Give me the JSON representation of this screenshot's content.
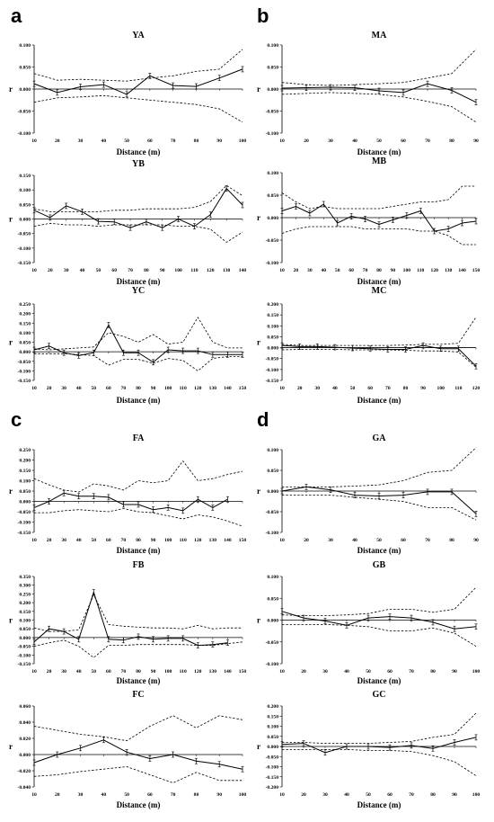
{
  "panel_letters": [
    "a",
    "b",
    "c",
    "d"
  ],
  "chart_data": [
    {
      "type": "line",
      "title": "YA",
      "xlabel": "Distance (m)",
      "ylabel": "r",
      "x": [
        10,
        20,
        30,
        40,
        50,
        60,
        70,
        80,
        90,
        100
      ],
      "yticks": [
        "0.100",
        "0.050",
        "0.000",
        "-0.050",
        "-0.100"
      ],
      "ylim": [
        -0.1,
        0.1
      ],
      "xlim": [
        10,
        100
      ],
      "r": [
        0.012,
        -0.008,
        0.005,
        0.01,
        -0.012,
        0.03,
        0.008,
        0.006,
        0.025,
        0.045
      ],
      "upper": [
        0.035,
        0.02,
        0.022,
        0.02,
        0.018,
        0.025,
        0.03,
        0.04,
        0.045,
        0.09
      ],
      "lower": [
        -0.03,
        -0.02,
        -0.018,
        -0.015,
        -0.02,
        -0.025,
        -0.03,
        -0.035,
        -0.045,
        -0.075
      ]
    },
    {
      "type": "line",
      "title": "MA",
      "xlabel": "Distance (m)",
      "ylabel": "r",
      "x": [
        10,
        20,
        30,
        40,
        50,
        60,
        70,
        80,
        90
      ],
      "yticks": [
        "0.100",
        "0.050",
        "0.000",
        "-0.050",
        "-0.100"
      ],
      "ylim": [
        -0.1,
        0.1
      ],
      "xlim": [
        10,
        90
      ],
      "r": [
        0.002,
        0.003,
        0.004,
        0.003,
        -0.004,
        -0.008,
        0.012,
        -0.003,
        -0.03
      ],
      "upper": [
        0.015,
        0.01,
        0.008,
        0.01,
        0.012,
        0.015,
        0.025,
        0.035,
        0.09
      ],
      "lower": [
        -0.012,
        -0.01,
        -0.008,
        -0.01,
        -0.012,
        -0.018,
        -0.028,
        -0.04,
        -0.075
      ]
    },
    {
      "type": "line",
      "title": "YB",
      "xlabel": "Distance (m)",
      "ylabel": "r",
      "x": [
        10,
        20,
        30,
        40,
        50,
        60,
        70,
        80,
        90,
        100,
        110,
        120,
        130,
        140
      ],
      "yticks": [
        "0.150",
        "0.100",
        "0.050",
        "0.000",
        "-0.050",
        "-0.100",
        "-0.150"
      ],
      "ylim": [
        -0.15,
        0.15
      ],
      "xlim": [
        10,
        140
      ],
      "r": [
        0.03,
        0.005,
        0.045,
        0.025,
        -0.008,
        -0.01,
        -0.03,
        -0.01,
        -0.03,
        0.0,
        -0.025,
        0.015,
        0.105,
        0.048
      ],
      "upper": [
        0.035,
        0.025,
        0.025,
        0.025,
        0.025,
        0.03,
        0.03,
        0.035,
        0.035,
        0.035,
        0.04,
        0.06,
        0.115,
        0.08
      ],
      "lower": [
        -0.025,
        -0.015,
        -0.02,
        -0.02,
        -0.025,
        -0.02,
        -0.02,
        -0.02,
        -0.02,
        -0.025,
        -0.025,
        -0.035,
        -0.08,
        -0.045
      ]
    },
    {
      "type": "line",
      "title": "MB",
      "xlabel": "Distance (m)",
      "ylabel": "r",
      "x": [
        10,
        20,
        30,
        40,
        50,
        60,
        70,
        80,
        90,
        100,
        110,
        120,
        130,
        140,
        150
      ],
      "yticks": [
        "0.100",
        "0.050",
        "0.000",
        "-0.050",
        "-0.100"
      ],
      "ylim": [
        -0.1,
        0.1
      ],
      "xlim": [
        10,
        150
      ],
      "r": [
        0.015,
        0.025,
        0.01,
        0.03,
        -0.012,
        0.003,
        -0.003,
        -0.015,
        -0.005,
        0.005,
        0.015,
        -0.03,
        -0.025,
        -0.012,
        -0.008
      ],
      "upper": [
        0.055,
        0.035,
        0.02,
        0.025,
        0.02,
        0.02,
        0.02,
        0.02,
        0.025,
        0.03,
        0.035,
        0.035,
        0.04,
        0.07,
        0.07
      ],
      "lower": [
        -0.035,
        -0.025,
        -0.02,
        -0.02,
        -0.02,
        -0.02,
        -0.025,
        -0.025,
        -0.025,
        -0.025,
        -0.03,
        -0.03,
        -0.04,
        -0.06,
        -0.06
      ]
    },
    {
      "type": "line",
      "title": "YC",
      "xlabel": "Distance (m)",
      "ylabel": "r",
      "x": [
        10,
        20,
        30,
        40,
        50,
        60,
        70,
        80,
        90,
        100,
        110,
        120,
        130,
        140,
        150
      ],
      "yticks": [
        "0.250",
        "0.200",
        "0.150",
        "0.100",
        "0.050",
        "0.000",
        "-0.050",
        "-0.100",
        "-0.150"
      ],
      "ylim": [
        -0.15,
        0.25
      ],
      "xlim": [
        10,
        150
      ],
      "r": [
        0.01,
        0.03,
        -0.005,
        -0.02,
        -0.005,
        0.14,
        -0.005,
        -0.005,
        -0.055,
        0.01,
        0.005,
        0.005,
        -0.015,
        -0.015,
        -0.015
      ],
      "upper": [
        0.015,
        0.01,
        0.015,
        0.02,
        0.025,
        0.1,
        0.08,
        0.05,
        0.09,
        0.04,
        0.05,
        0.18,
        0.05,
        0.02,
        0.02
      ],
      "lower": [
        -0.01,
        -0.01,
        -0.01,
        -0.015,
        -0.02,
        -0.07,
        -0.04,
        -0.04,
        -0.06,
        -0.035,
        -0.045,
        -0.1,
        -0.035,
        -0.025,
        -0.025
      ]
    },
    {
      "type": "line",
      "title": "MC",
      "xlabel": "Distance (m)",
      "ylabel": "r",
      "x": [
        10,
        20,
        30,
        40,
        50,
        60,
        70,
        80,
        90,
        100,
        110,
        120
      ],
      "yticks": [
        "0.200",
        "0.150",
        "0.100",
        "0.050",
        "0.000",
        "-0.050",
        "-0.100",
        "-0.150"
      ],
      "ylim": [
        -0.15,
        0.2
      ],
      "xlim": [
        10,
        120
      ],
      "r": [
        0.01,
        0.005,
        0.005,
        0.002,
        -0.002,
        -0.005,
        -0.008,
        -0.008,
        0.01,
        -0.005,
        -0.005,
        -0.085
      ],
      "upper": [
        0.015,
        0.01,
        0.01,
        0.01,
        0.01,
        0.01,
        0.01,
        0.012,
        0.015,
        0.015,
        0.02,
        0.14
      ],
      "lower": [
        -0.01,
        -0.008,
        -0.008,
        -0.008,
        -0.01,
        -0.01,
        -0.01,
        -0.012,
        -0.015,
        -0.015,
        -0.02,
        -0.09
      ]
    },
    {
      "type": "line",
      "title": "FA",
      "xlabel": "Distance (m)",
      "ylabel": "r",
      "x": [
        10,
        20,
        30,
        40,
        50,
        60,
        70,
        80,
        90,
        100,
        110,
        120,
        130,
        140,
        150
      ],
      "yticks": [
        "0.250",
        "0.200",
        "0.150",
        "0.100",
        "0.050",
        "0.000",
        "-0.050",
        "-0.100",
        "-0.150"
      ],
      "ylim": [
        -0.15,
        0.25
      ],
      "xlim": [
        10,
        150
      ],
      "r": [
        -0.03,
        0.0,
        0.04,
        0.025,
        0.025,
        0.02,
        -0.015,
        -0.015,
        -0.04,
        -0.03,
        -0.045,
        0.01,
        -0.03,
        0.01,
        null
      ],
      "upper": [
        0.11,
        0.08,
        0.055,
        0.045,
        0.085,
        0.075,
        0.055,
        0.1,
        0.09,
        0.1,
        0.195,
        0.1,
        0.11,
        0.13,
        0.145
      ],
      "lower": [
        -0.055,
        -0.055,
        -0.045,
        -0.04,
        -0.045,
        -0.05,
        -0.035,
        -0.05,
        -0.055,
        -0.07,
        -0.085,
        -0.065,
        -0.075,
        -0.095,
        -0.12
      ]
    },
    {
      "type": "line",
      "title": "GA",
      "xlabel": "Distance (m)",
      "ylabel": "r",
      "x": [
        10,
        20,
        30,
        40,
        50,
        60,
        70,
        80,
        90
      ],
      "yticks": [
        "0.100",
        "0.050",
        "0.000",
        "-0.050",
        "-0.100"
      ],
      "ylim": [
        -0.1,
        0.1
      ],
      "xlim": [
        10,
        90
      ],
      "r": [
        0.0,
        0.01,
        0.003,
        -0.01,
        -0.012,
        -0.01,
        -0.002,
        -0.002,
        -0.055
      ],
      "upper": [
        0.01,
        0.01,
        0.01,
        0.012,
        0.015,
        0.025,
        0.045,
        0.05,
        0.105
      ],
      "lower": [
        -0.01,
        -0.01,
        -0.01,
        -0.015,
        -0.02,
        -0.025,
        -0.04,
        -0.04,
        -0.07
      ]
    },
    {
      "type": "line",
      "title": "FB",
      "xlabel": "Distance (m)",
      "ylabel": "r",
      "x": [
        10,
        20,
        30,
        40,
        50,
        60,
        70,
        80,
        90,
        100,
        110,
        120,
        130,
        140,
        150
      ],
      "yticks": [
        "0.350",
        "0.300",
        "0.250",
        "0.200",
        "0.150",
        "0.100",
        "0.050",
        "0.000",
        "-0.050",
        "-0.100",
        "-0.150"
      ],
      "ylim": [
        -0.15,
        0.35
      ],
      "xlim": [
        10,
        150
      ],
      "r": [
        -0.025,
        0.05,
        0.035,
        -0.01,
        0.26,
        -0.01,
        -0.015,
        0.005,
        -0.01,
        -0.005,
        -0.005,
        -0.045,
        -0.04,
        -0.03,
        null
      ],
      "upper": [
        0.055,
        0.035,
        0.035,
        0.045,
        0.245,
        0.075,
        0.065,
        0.06,
        0.055,
        0.055,
        0.05,
        0.07,
        0.05,
        0.055,
        0.055
      ],
      "lower": [
        -0.05,
        -0.03,
        -0.015,
        -0.05,
        -0.115,
        -0.045,
        -0.045,
        -0.04,
        -0.04,
        -0.04,
        -0.04,
        -0.045,
        -0.045,
        -0.035,
        -0.025
      ]
    },
    {
      "type": "line",
      "title": "GB",
      "xlabel": "Distance (m)",
      "ylabel": "r",
      "x": [
        10,
        20,
        30,
        40,
        50,
        60,
        70,
        80,
        90,
        100
      ],
      "yticks": [
        "0.100",
        "0.050",
        "0.000",
        "-0.050",
        "-0.100"
      ],
      "ylim": [
        -0.1,
        0.1
      ],
      "xlim": [
        10,
        100
      ],
      "r": [
        0.02,
        0.005,
        -0.002,
        -0.012,
        0.005,
        0.008,
        0.005,
        -0.005,
        -0.02,
        -0.015
      ],
      "upper": [
        0.012,
        0.01,
        0.01,
        0.012,
        0.015,
        0.025,
        0.025,
        0.018,
        0.025,
        0.075
      ],
      "lower": [
        -0.01,
        -0.01,
        -0.01,
        -0.012,
        -0.015,
        -0.025,
        -0.025,
        -0.018,
        -0.03,
        -0.06
      ]
    },
    {
      "type": "line",
      "title": "FC",
      "xlabel": "Distance (m)",
      "ylabel": "r",
      "x": [
        10,
        20,
        30,
        40,
        50,
        60,
        70,
        80,
        90,
        100
      ],
      "yticks": [
        "0.060",
        "0.040",
        "0.020",
        "0.000",
        "-0.020",
        "-0.040"
      ],
      "ylim": [
        -0.04,
        0.06
      ],
      "xlim": [
        10,
        100
      ],
      "r": [
        -0.01,
        0.0,
        0.008,
        0.018,
        0.003,
        -0.005,
        0.0,
        -0.008,
        -0.012,
        -0.018
      ],
      "upper": [
        0.035,
        0.03,
        0.025,
        0.022,
        0.017,
        0.035,
        0.048,
        0.033,
        0.048,
        0.043
      ],
      "lower": [
        -0.027,
        -0.025,
        -0.021,
        -0.018,
        -0.015,
        -0.025,
        -0.035,
        -0.022,
        -0.032,
        -0.032
      ]
    },
    {
      "type": "line",
      "title": "GC",
      "xlabel": "Distance (m)",
      "ylabel": "r",
      "x": [
        10,
        20,
        30,
        40,
        50,
        60,
        70,
        80,
        90,
        100
      ],
      "yticks": [
        "0.200",
        "0.150",
        "0.100",
        "0.050",
        "0.000",
        "-0.050",
        "-0.100",
        "-0.150",
        "-0.200"
      ],
      "ylim": [
        -0.2,
        0.2
      ],
      "xlim": [
        10,
        100
      ],
      "r": [
        0.01,
        0.015,
        -0.03,
        0.0,
        0.0,
        -0.005,
        0.005,
        -0.01,
        0.02,
        0.045
      ],
      "upper": [
        0.02,
        0.02,
        0.015,
        0.015,
        0.015,
        0.02,
        0.025,
        0.045,
        0.06,
        0.165
      ],
      "lower": [
        -0.015,
        -0.015,
        -0.015,
        -0.015,
        -0.02,
        -0.02,
        -0.025,
        -0.045,
        -0.075,
        -0.145
      ]
    }
  ]
}
